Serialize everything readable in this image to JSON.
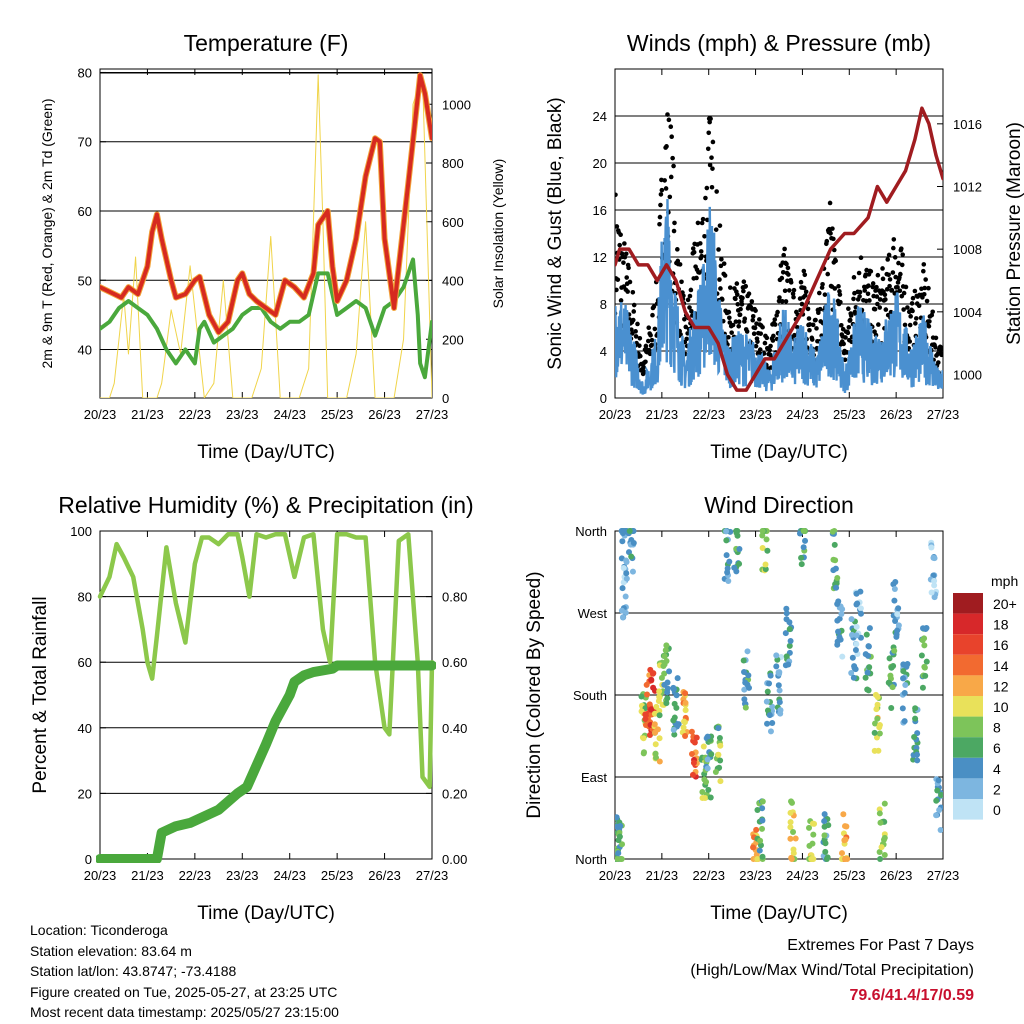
{
  "x_ticks": [
    "20/23",
    "21/23",
    "22/23",
    "23/23",
    "24/23",
    "25/23",
    "26/23",
    "27/23"
  ],
  "time_label": "Time (Day/UTC)",
  "panels": {
    "temperature": {
      "title": "Temperature (F)",
      "ylabel_left": "2m & 9m T (Red, Orange) & 2m Td (Green)",
      "ylabel_right": "Solar Insolation (Yellow)",
      "left_ticks": [
        40,
        50,
        60,
        70,
        80
      ],
      "right_ticks": [
        0,
        200,
        400,
        600,
        800,
        1000
      ]
    },
    "winds": {
      "title": "Winds (mph) & Pressure (mb)",
      "ylabel_left": "Sonic Wind & Gust (Blue, Black)",
      "ylabel_right": "Station Pressure (Maroon)",
      "left_ticks": [
        0,
        4,
        8,
        12,
        16,
        20,
        24
      ],
      "right_ticks": [
        1000,
        1004,
        1008,
        1012,
        1016
      ]
    },
    "humidity": {
      "title": "Relative Humidity (%) & Precipitation (in)",
      "ylabel_left": "Percent & Total Rainfall",
      "left_ticks": [
        0,
        20,
        40,
        60,
        80,
        100
      ],
      "right_ticks": [
        "0.00",
        "0.20",
        "0.40",
        "0.60",
        "0.80"
      ]
    },
    "direction": {
      "title": "Wind Direction",
      "ylabel_left": "Direction (Colored By Speed)",
      "dir_ticks": [
        "North",
        "East",
        "South",
        "West",
        "North"
      ],
      "legend_title": "mph",
      "legend_labels": [
        "20+",
        "18",
        "16",
        "14",
        "12",
        "10",
        "8",
        "6",
        "4",
        "2",
        "0"
      ],
      "legend_colors": [
        "#a01c20",
        "#d7282a",
        "#e8432c",
        "#f26a30",
        "#f8a848",
        "#e9e15a",
        "#7dc45a",
        "#4ca863",
        "#4a8fc4",
        "#7db6e0",
        "#bfe3f5"
      ]
    }
  },
  "info": {
    "location": "Location: Ticonderoga",
    "elevation": "Station elevation: 83.64 m",
    "latlon": "Station lat/lon: 43.8747; -73.4188",
    "created": "Figure created on Tue, 2025-05-27, at 23:25 UTC",
    "timestamp": "Most recent data timestamp: 2025/05/27 23:15:00"
  },
  "extremes": {
    "title": "Extremes For Past 7 Days",
    "subtitle": "(High/Low/Max Wind/Total Precipitation)",
    "values": "79.6/41.4/17/0.59"
  },
  "chart_data": [
    {
      "type": "line",
      "title": "Temperature (F)",
      "xlabel": "Time (Day/UTC)",
      "ylabel": "2m & 9m T (Red, Orange) & 2m Td (Green)",
      "ylabel_right": "Solar Insolation (Yellow)",
      "x_unit": "days since 20/23",
      "xlim": [
        0,
        7
      ],
      "ylim": [
        33,
        80.5
      ],
      "ylim_right": [
        0,
        1120
      ],
      "series": [
        {
          "name": "2m & 9m T (Red, Orange)",
          "color": "#d62a20",
          "x": [
            0,
            0.3,
            0.45,
            0.6,
            0.8,
            1.0,
            1.1,
            1.2,
            1.3,
            1.5,
            1.6,
            1.8,
            2.0,
            2.1,
            2.3,
            2.5,
            2.7,
            2.9,
            3.0,
            3.15,
            3.3,
            3.5,
            3.7,
            3.9,
            4.1,
            4.3,
            4.5,
            4.6,
            4.8,
            4.9,
            5.0,
            5.2,
            5.4,
            5.6,
            5.8,
            5.9,
            6.0,
            6.2,
            6.5,
            6.75,
            6.85,
            7.0
          ],
          "y": [
            49,
            48,
            47.5,
            49,
            48,
            52,
            57,
            59.5,
            56,
            50,
            47.5,
            48,
            50,
            50.5,
            45,
            42.5,
            44,
            50,
            51,
            48,
            47,
            46,
            45,
            50,
            49,
            47.5,
            51,
            58,
            60,
            52,
            47,
            50,
            56,
            65,
            70.5,
            70,
            56,
            46,
            64,
            79.6,
            77,
            70.5
          ]
        },
        {
          "name": "2m Td (Green)",
          "color": "#4aa83c",
          "x": [
            0,
            0.2,
            0.4,
            0.6,
            0.8,
            1.0,
            1.2,
            1.4,
            1.6,
            1.8,
            2.0,
            2.1,
            2.2,
            2.4,
            2.6,
            2.8,
            3.0,
            3.2,
            3.4,
            3.6,
            3.8,
            4.0,
            4.2,
            4.4,
            4.6,
            4.8,
            5.0,
            5.2,
            5.4,
            5.6,
            5.8,
            6.0,
            6.2,
            6.4,
            6.6,
            6.7,
            6.75,
            6.85,
            7.0
          ],
          "y": [
            43,
            44,
            46,
            47,
            46,
            45,
            43,
            40,
            38,
            40,
            38,
            43,
            44,
            41,
            42,
            43,
            45,
            46,
            46,
            44,
            43,
            44,
            44,
            45,
            51,
            51,
            45,
            46,
            47,
            46,
            42,
            46,
            47,
            49,
            53,
            45,
            38,
            36,
            44
          ]
        },
        {
          "name": "Solar Insolation (Yellow)",
          "axis": "right",
          "color": "#f0d44a",
          "x": [
            0,
            0.2,
            0.3,
            0.5,
            0.6,
            0.75,
            0.9,
            1.2,
            1.3,
            1.5,
            1.7,
            1.9,
            2.2,
            2.4,
            2.6,
            2.8,
            3.2,
            3.4,
            3.6,
            3.8,
            4.2,
            4.4,
            4.6,
            4.7,
            4.8,
            5.2,
            5.4,
            5.6,
            5.8,
            6.2,
            6.4,
            6.6,
            6.8,
            7.0
          ],
          "y": [
            0,
            0,
            50,
            350,
            150,
            480,
            0,
            0,
            50,
            300,
            150,
            450,
            0,
            50,
            400,
            0,
            0,
            100,
            550,
            0,
            0,
            100,
            1100,
            600,
            0,
            0,
            150,
            600,
            0,
            0,
            200,
            1000,
            1100,
            0
          ]
        }
      ]
    },
    {
      "type": "scatter",
      "title": "Winds (mph) & Pressure (mb)",
      "xlabel": "Time (Day/UTC)",
      "ylabel": "Sonic Wind & Gust (Blue, Black)",
      "ylabel_right": "Station Pressure (Maroon)",
      "x_unit": "days since 20/23",
      "xlim": [
        0,
        7
      ],
      "ylim": [
        0,
        28
      ],
      "ylim_right": [
        998.5,
        1019.5
      ],
      "series": [
        {
          "name": "Gust (Black)",
          "color": "#000000",
          "x": [
            0.0,
            0.3,
            0.6,
            0.9,
            1.0,
            1.1,
            1.2,
            1.3,
            1.5,
            1.7,
            1.9,
            2.0,
            2.1,
            2.2,
            2.4,
            2.7,
            3.0,
            3.3,
            3.6,
            3.8,
            4.0,
            4.3,
            4.6,
            4.9,
            5.2,
            5.5,
            5.8,
            6.0,
            6.3,
            6.6,
            6.9
          ],
          "y": [
            16,
            10,
            3,
            9,
            18,
            23,
            21,
            14,
            6,
            12,
            16,
            22,
            20,
            14,
            8,
            9,
            7,
            4,
            12,
            8,
            10,
            6,
            15,
            5,
            12,
            9,
            10,
            14,
            7,
            10,
            4
          ]
        },
        {
          "name": "Sonic Wind (Blue)",
          "color": "#4a90d0",
          "x": [
            0.0,
            0.3,
            0.6,
            0.9,
            1.0,
            1.1,
            1.2,
            1.3,
            1.5,
            1.7,
            1.9,
            2.0,
            2.1,
            2.2,
            2.4,
            2.7,
            3.0,
            3.3,
            3.6,
            3.8,
            4.0,
            4.3,
            4.6,
            4.9,
            5.2,
            5.5,
            5.8,
            6.0,
            6.3,
            6.6,
            6.9
          ],
          "y": [
            9,
            6,
            1,
            5,
            12,
            15,
            13,
            8,
            3,
            7,
            10,
            15,
            13,
            8,
            4,
            5,
            4,
            2,
            7,
            4,
            6,
            3,
            9,
            2,
            7,
            5,
            6,
            8,
            4,
            6,
            2
          ]
        },
        {
          "name": "Station Pressure (Maroon)",
          "axis": "right",
          "color": "#a01c20",
          "render": "line",
          "x": [
            0,
            0.1,
            0.3,
            0.5,
            0.7,
            0.9,
            1.1,
            1.3,
            1.5,
            1.7,
            2.0,
            2.2,
            2.4,
            2.6,
            2.8,
            3.0,
            3.2,
            3.4,
            3.6,
            3.8,
            4.0,
            4.3,
            4.6,
            4.9,
            5.1,
            5.4,
            5.6,
            5.8,
            6.0,
            6.2,
            6.4,
            6.55,
            6.7,
            6.85,
            7.0
          ],
          "y": [
            1007,
            1008,
            1008,
            1007,
            1007,
            1006,
            1007,
            1006,
            1004,
            1003,
            1003,
            1002,
            1000,
            999,
            999,
            1000,
            1001,
            1001,
            1002,
            1003,
            1004,
            1006,
            1008,
            1009,
            1009,
            1010,
            1012,
            1011,
            1012,
            1013,
            1015,
            1017,
            1016,
            1014,
            1012.5
          ]
        }
      ]
    },
    {
      "type": "line",
      "title": "Relative Humidity (%) & Precipitation (in)",
      "xlabel": "Time (Day/UTC)",
      "ylabel": "Percent & Total Rainfall",
      "x_unit": "days since 20/23",
      "xlim": [
        0,
        7
      ],
      "ylim": [
        0,
        100
      ],
      "ylim_right": [
        0,
        1.0
      ],
      "series": [
        {
          "name": "Relative Humidity",
          "color": "#8cc84b",
          "x": [
            0,
            0.2,
            0.35,
            0.5,
            0.7,
            0.9,
            1.0,
            1.1,
            1.2,
            1.4,
            1.6,
            1.8,
            2.0,
            2.15,
            2.3,
            2.5,
            2.7,
            2.9,
            3.0,
            3.15,
            3.3,
            3.5,
            3.7,
            3.9,
            4.1,
            4.3,
            4.5,
            4.7,
            4.85,
            5.0,
            5.2,
            5.4,
            5.6,
            5.8,
            6.0,
            6.1,
            6.3,
            6.5,
            6.7,
            6.8,
            6.95,
            7.0
          ],
          "y": [
            80,
            86,
            96,
            92,
            86,
            70,
            60,
            55,
            68,
            95,
            78,
            66,
            90,
            98,
            98,
            96,
            99,
            99,
            92,
            80,
            99,
            98,
            99,
            99,
            86,
            98,
            99,
            70,
            60,
            99,
            99,
            98,
            98,
            60,
            40,
            38,
            97,
            99,
            60,
            25,
            22,
            60
          ]
        },
        {
          "name": "Total Precipitation",
          "axis": "right",
          "color": "#4aa83c",
          "x": [
            0,
            1.2,
            1.3,
            1.6,
            1.9,
            2.5,
            2.9,
            3.1,
            3.5,
            3.7,
            4.0,
            4.1,
            4.3,
            4.5,
            4.9,
            5.0,
            5.5,
            6.0,
            6.5,
            7.0
          ],
          "y": [
            0,
            0,
            0.08,
            0.1,
            0.11,
            0.15,
            0.2,
            0.22,
            0.35,
            0.42,
            0.5,
            0.54,
            0.56,
            0.57,
            0.58,
            0.59,
            0.59,
            0.59,
            0.59,
            0.59
          ]
        }
      ]
    },
    {
      "type": "scatter",
      "title": "Wind Direction",
      "xlabel": "Time (Day/UTC)",
      "ylabel": "Direction (Colored By Speed)",
      "x_unit": "days since 20/23",
      "xlim": [
        0,
        7
      ],
      "y_unit": "degrees (0=North, 90=East, 180=South, 270=West, 360=North)",
      "ylim": [
        0,
        360
      ],
      "series": [
        {
          "name": "Wind Direction",
          "x": [
            0.05,
            0.1,
            0.2,
            0.2,
            0.35,
            0.6,
            0.7,
            0.8,
            0.9,
            1.0,
            1.1,
            1.3,
            1.5,
            1.7,
            1.9,
            2.0,
            2.2,
            2.4,
            2.6,
            2.8,
            3.0,
            3.1,
            3.2,
            3.3,
            3.5,
            3.7,
            3.8,
            4.0,
            4.2,
            4.5,
            4.7,
            4.8,
            4.9,
            5.1,
            5.2,
            5.4,
            5.6,
            5.7,
            5.9,
            6.0,
            6.2,
            6.4,
            6.6,
            6.8,
            6.9
          ],
          "y": [
            20,
            10,
            355,
            300,
            350,
            150,
            180,
            170,
            140,
            190,
            200,
            170,
            150,
            120,
            90,
            100,
            120,
            340,
            350,
            200,
            10,
            30,
            350,
            170,
            190,
            240,
            30,
            350,
            10,
            20,
            330,
            250,
            20,
            230,
            260,
            220,
            150,
            30,
            200,
            270,
            180,
            140,
            220,
            320,
            60
          ],
          "speed": [
            5,
            6,
            3,
            2,
            4,
            8,
            15,
            16,
            10,
            9,
            6,
            5,
            12,
            15,
            8,
            5,
            7,
            4,
            6,
            5,
            12,
            6,
            8,
            4,
            3,
            5,
            10,
            6,
            9,
            5,
            7,
            3,
            12,
            4,
            2,
            5,
            9,
            8,
            6,
            3,
            4,
            5,
            6,
            2,
            4
          ]
        }
      ]
    }
  ]
}
